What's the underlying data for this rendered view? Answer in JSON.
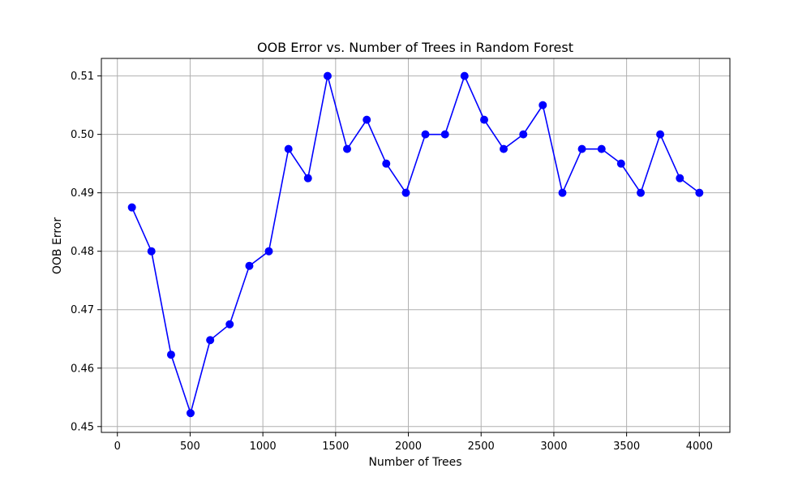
{
  "chart_data": {
    "type": "line",
    "title": "OOB Error vs. Number of Trees in Random Forest",
    "xlabel": "Number of Trees",
    "ylabel": "OOB Error",
    "xlim": [
      -110,
      4210
    ],
    "ylim": [
      0.449,
      0.513
    ],
    "x_ticks": [
      0,
      500,
      1000,
      1500,
      2000,
      2500,
      3000,
      3500,
      4000
    ],
    "y_ticks": [
      0.45,
      0.46,
      0.47,
      0.48,
      0.49,
      0.5,
      0.51
    ],
    "y_tick_labels": [
      "0.45",
      "0.46",
      "0.47",
      "0.48",
      "0.49",
      "0.50",
      "0.51"
    ],
    "grid": true,
    "series": [
      {
        "color": "#0000ff",
        "marker": "circle",
        "x": [
          100,
          234,
          369,
          503,
          638,
          772,
          907,
          1041,
          1176,
          1310,
          1445,
          1579,
          1714,
          1848,
          1983,
          2117,
          2252,
          2386,
          2521,
          2655,
          2790,
          2924,
          3059,
          3193,
          3328,
          3462,
          3597,
          3731,
          3866,
          4000
        ],
        "y": [
          0.4875,
          0.48,
          0.4623,
          0.4523,
          0.4648,
          0.4675,
          0.4775,
          0.48,
          0.4975,
          0.4925,
          0.51,
          0.4975,
          0.5025,
          0.495,
          0.49,
          0.5,
          0.5,
          0.51,
          0.5025,
          0.4975,
          0.5,
          0.505,
          0.49,
          0.4975,
          0.4975,
          0.495,
          0.49,
          0.5,
          0.4925,
          0.49
        ]
      }
    ]
  }
}
